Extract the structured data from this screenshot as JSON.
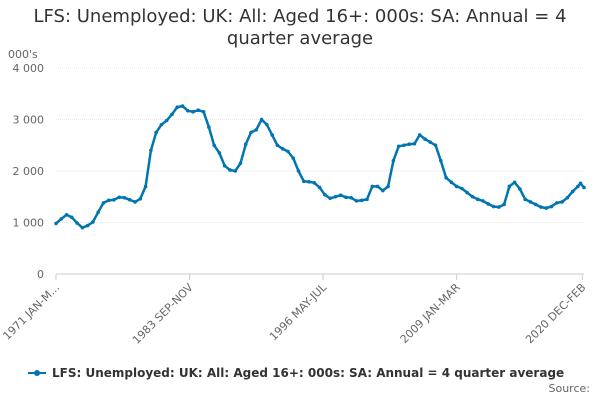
{
  "chart_data": {
    "type": "line",
    "title_lines": [
      "LFS: Unemployed: UK: All: Aged 16+: 000s: SA: Annual = 4",
      "quarter average"
    ],
    "ylabel": "000's",
    "ylim": [
      0,
      4000
    ],
    "yticks": [
      0,
      1000,
      2000,
      3000,
      4000
    ],
    "ytick_labels": [
      "0",
      "1 000",
      "2 000",
      "3 000",
      "4 000"
    ],
    "xlim": [
      1971.0,
      2021.08
    ],
    "xticks": [
      1971.0,
      1983.67,
      1996.33,
      2009.0,
      2020.92
    ],
    "xtick_labels": [
      "1971 JAN-M...",
      "1983 SEP-NOV",
      "1996 MAY-JUL",
      "2009 JAN-MAR",
      "2020 DEC-FEB"
    ],
    "grid": "horizontal",
    "legend_position": "bottom",
    "color": "#0075b0",
    "series": [
      {
        "name": "LFS: Unemployed: UK: All: Aged 16+: 000s: SA: Annual = 4 quarter average",
        "x": [
          1971.0,
          1971.5,
          1972.0,
          1972.5,
          1973.0,
          1973.5,
          1974.0,
          1974.5,
          1975.0,
          1975.5,
          1976.0,
          1976.5,
          1977.0,
          1977.5,
          1978.0,
          1978.5,
          1979.0,
          1979.5,
          1980.0,
          1980.5,
          1981.0,
          1981.5,
          1982.0,
          1982.5,
          1983.0,
          1983.5,
          1984.0,
          1984.5,
          1985.0,
          1985.5,
          1986.0,
          1986.5,
          1987.0,
          1987.5,
          1988.0,
          1988.5,
          1989.0,
          1989.5,
          1990.0,
          1990.5,
          1991.0,
          1991.5,
          1992.0,
          1992.5,
          1993.0,
          1993.5,
          1994.0,
          1994.5,
          1995.0,
          1995.5,
          1996.0,
          1996.5,
          1997.0,
          1997.5,
          1998.0,
          1998.5,
          1999.0,
          1999.5,
          2000.0,
          2000.5,
          2001.0,
          2001.5,
          2002.0,
          2002.5,
          2003.0,
          2003.5,
          2004.0,
          2004.5,
          2005.0,
          2005.5,
          2006.0,
          2006.5,
          2007.0,
          2007.5,
          2008.0,
          2008.5,
          2009.0,
          2009.5,
          2010.0,
          2010.5,
          2011.0,
          2011.5,
          2012.0,
          2012.5,
          2013.0,
          2013.5,
          2014.0,
          2014.5,
          2015.0,
          2015.5,
          2016.0,
          2016.5,
          2017.0,
          2017.5,
          2018.0,
          2018.5,
          2019.0,
          2019.5,
          2020.0,
          2020.5,
          2020.75,
          2021.08
        ],
        "y": [
          980,
          1070,
          1150,
          1100,
          990,
          900,
          940,
          1010,
          1200,
          1380,
          1430,
          1440,
          1490,
          1480,
          1440,
          1400,
          1460,
          1700,
          2400,
          2750,
          2900,
          2980,
          3100,
          3240,
          3260,
          3170,
          3150,
          3180,
          3150,
          2850,
          2500,
          2350,
          2100,
          2020,
          2000,
          2150,
          2520,
          2750,
          2800,
          3000,
          2900,
          2700,
          2500,
          2430,
          2380,
          2250,
          2000,
          1800,
          1790,
          1770,
          1680,
          1540,
          1470,
          1500,
          1530,
          1490,
          1480,
          1420,
          1430,
          1450,
          1700,
          1700,
          1620,
          1700,
          2200,
          2480,
          2500,
          2520,
          2530,
          2700,
          2620,
          2560,
          2500,
          2200,
          1870,
          1780,
          1700,
          1660,
          1580,
          1500,
          1450,
          1420,
          1360,
          1310,
          1300,
          1350,
          1700,
          1780,
          1650,
          1450,
          1400,
          1350,
          1300,
          1280,
          1310,
          1380,
          1400,
          1480,
          1600,
          1700,
          1760,
          1680
        ]
      }
    ]
  },
  "source_label": "Source:"
}
